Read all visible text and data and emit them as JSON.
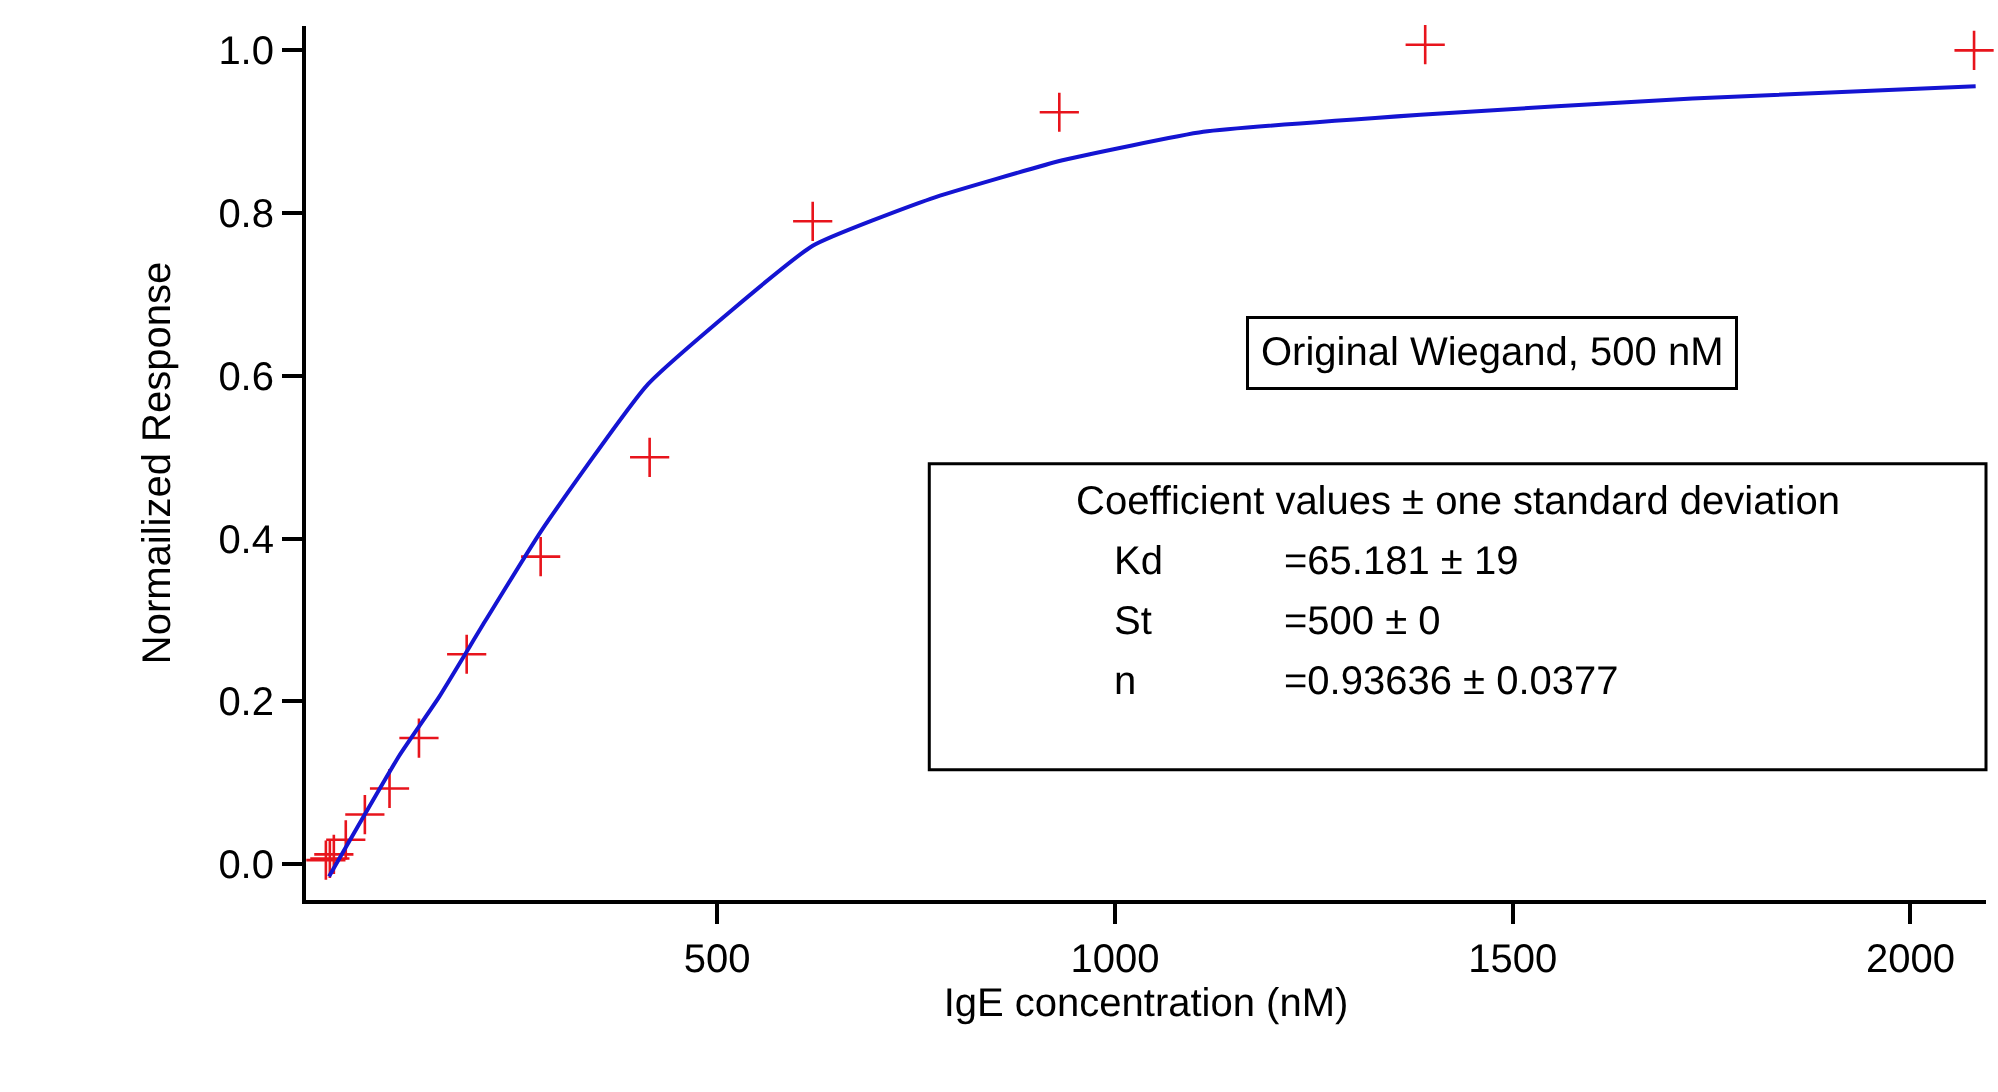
{
  "chart_data": {
    "type": "scatter",
    "xlabel": "IgE concentration (nM)",
    "ylabel": "Normailized Response",
    "xlim": [
      -17,
      2095
    ],
    "ylim": [
      -0.044,
      1.03
    ],
    "xticks": [
      500,
      1000,
      1500,
      2000
    ],
    "yticks": [
      {
        "value": 0,
        "label": "0.0"
      },
      0.2,
      0.4,
      0.6,
      0.8,
      {
        "value": 1,
        "label": "1.0"
      }
    ],
    "series": [
      {
        "marker": "cross",
        "color": "#e8141c",
        "x": [
          8,
          13,
          18,
          33,
          57,
          88,
          125,
          185,
          278,
          415,
          620,
          930,
          1390,
          2080
        ],
        "values": [
          0.005,
          0.007,
          0.012,
          0.03,
          0.061,
          0.093,
          0.155,
          0.258,
          0.378,
          0.5,
          0.79,
          0.924,
          1.007,
          1.0
        ]
      },
      {
        "type": "line",
        "marker": "none",
        "line_style": "solid",
        "color": "#1414d2",
        "x": [
          12,
          100,
          150,
          209,
          279,
          413,
          620,
          769,
          934,
          1111,
          1384,
          1726,
          2082
        ],
        "values": [
          -0.015,
          0.133,
          0.205,
          0.3,
          0.41,
          0.59,
          0.76,
          0.818,
          0.865,
          0.9,
          0.921,
          0.941,
          0.956
        ]
      }
    ],
    "annotations": [
      "Original Wiegand, 500 nM",
      "Coefficient values ± one standard deviation\nKd\t=65.181 ± 19\nSt\t=500 ± 0\nn\t=0.93636 ± 0.0377"
    ]
  }
}
